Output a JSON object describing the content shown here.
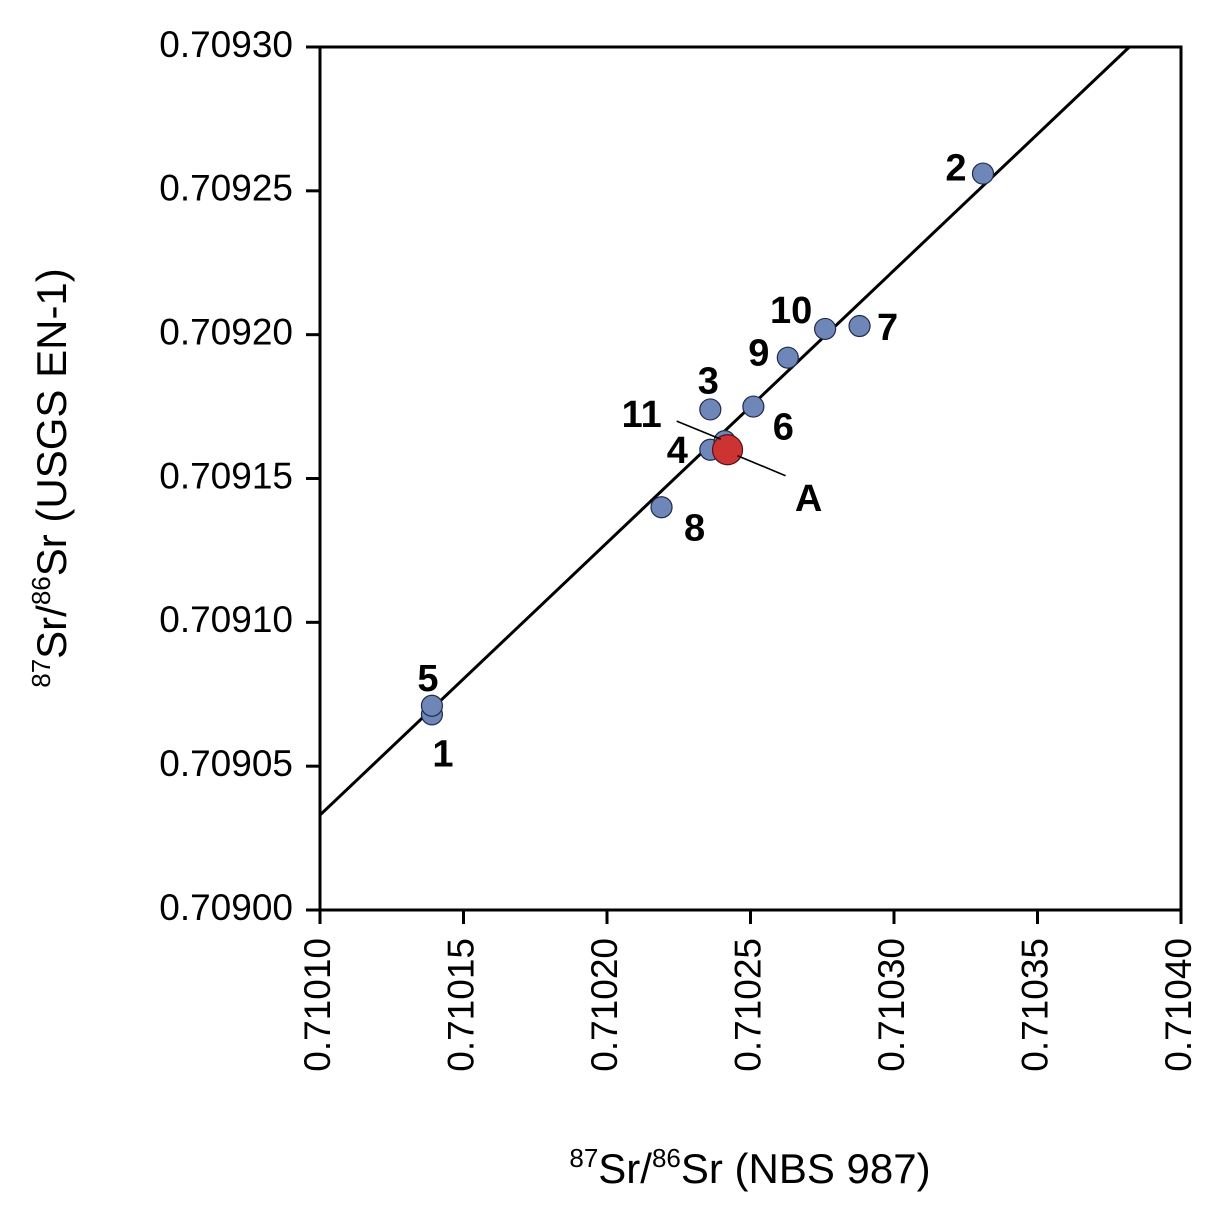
{
  "chart_data": {
    "type": "scatter",
    "xlim": [
      0.7101,
      0.7104
    ],
    "ylim": [
      0.709,
      0.7093
    ],
    "x_ticks": [
      "0.71010",
      "0.71015",
      "0.71020",
      "0.71025",
      "0.71030",
      "0.71035",
      "0.71040"
    ],
    "y_ticks": [
      "0.70900",
      "0.70905",
      "0.70910",
      "0.70915",
      "0.70920",
      "0.70925",
      "0.70930"
    ],
    "xlabel": {
      "sup1": "87",
      "part1": "Sr/",
      "sup2": "86",
      "part2": "Sr (NBS 987)"
    },
    "ylabel": {
      "sup1": "87",
      "part1": "Sr/",
      "sup2": "86",
      "part2": "Sr (USGS EN-1)"
    },
    "grid": false,
    "line": {
      "x": [
        0.7101,
        0.710382
      ],
      "y": [
        0.709033,
        0.7093
      ]
    },
    "points": [
      {
        "label": "1",
        "x": 0.710139,
        "y": 0.709068
      },
      {
        "label": "2",
        "x": 0.710331,
        "y": 0.709256
      },
      {
        "label": "3",
        "x": 0.710236,
        "y": 0.709174
      },
      {
        "label": "4",
        "x": 0.710236,
        "y": 0.70916
      },
      {
        "label": "5",
        "x": 0.710139,
        "y": 0.709071
      },
      {
        "label": "6",
        "x": 0.710251,
        "y": 0.709175
      },
      {
        "label": "7",
        "x": 0.710288,
        "y": 0.709203
      },
      {
        "label": "8",
        "x": 0.710219,
        "y": 0.70914
      },
      {
        "label": "9",
        "x": 0.710263,
        "y": 0.709192
      },
      {
        "label": "10",
        "x": 0.710276,
        "y": 0.709202
      },
      {
        "label": "11",
        "x": 0.710241,
        "y": 0.709163
      },
      {
        "label": "A",
        "x": 0.710242,
        "y": 0.70916,
        "highlight": true
      }
    ],
    "colors": {
      "point": "#6f86b8",
      "highlight": "#cc3333",
      "stroke": "#1f2a4a"
    }
  }
}
